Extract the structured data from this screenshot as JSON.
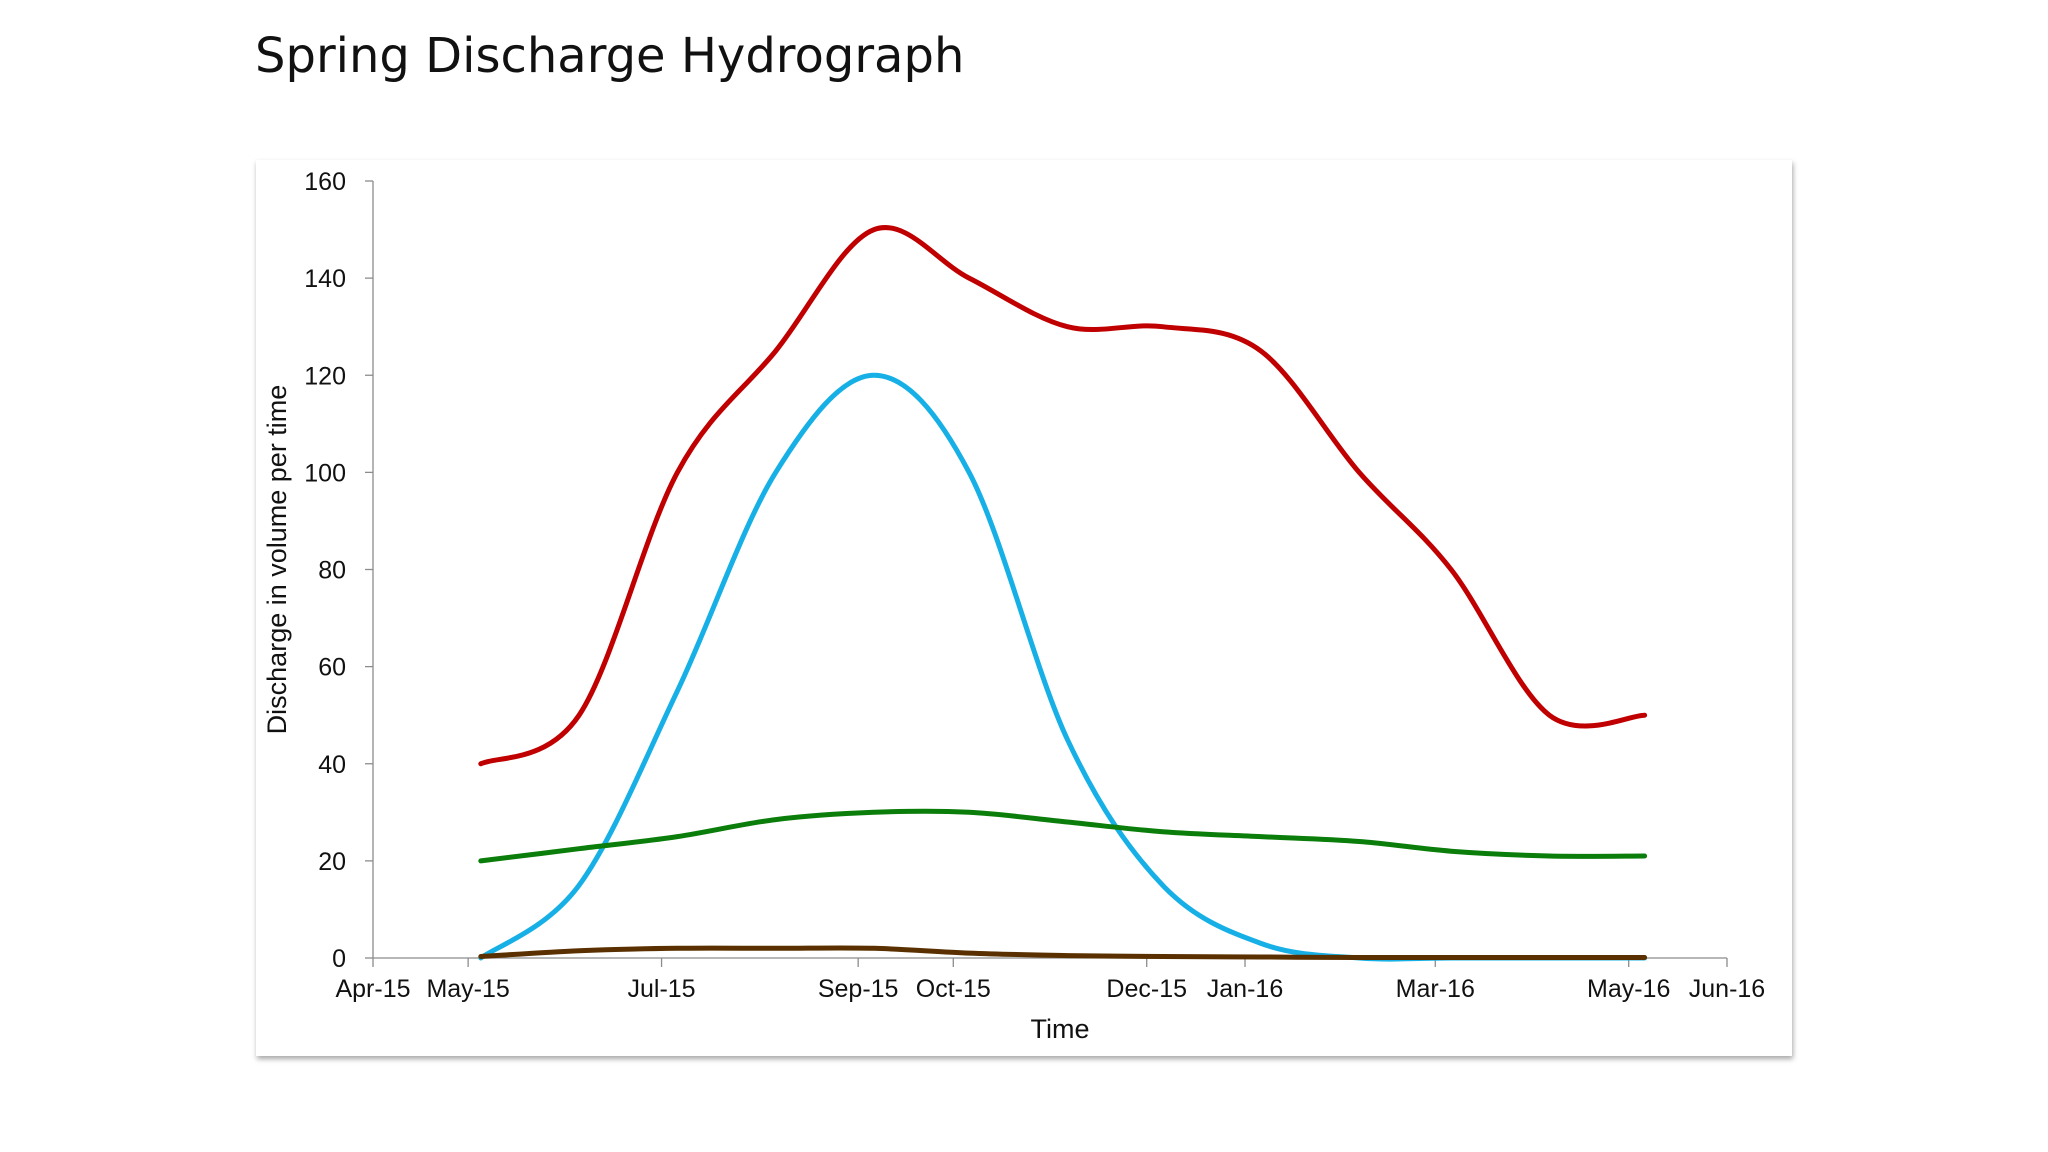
{
  "page": {
    "title": "Spring Discharge Hydrograph"
  },
  "chart_data": {
    "type": "line",
    "title": "Spring Discharge Hydrograph",
    "xlabel": "Time",
    "ylabel": "Discharge in volume per time",
    "ylim": [
      0,
      160
    ],
    "yticks": [
      0,
      20,
      40,
      60,
      80,
      100,
      120,
      140,
      160
    ],
    "xlim": [
      "2015-04-01",
      "2016-06-01"
    ],
    "xticks": [
      {
        "date": "2015-04-01",
        "label": "Apr-15"
      },
      {
        "date": "2015-05-01",
        "label": "May-15"
      },
      {
        "date": "2015-07-01",
        "label": "Jul-15"
      },
      {
        "date": "2015-09-01",
        "label": "Sep-15"
      },
      {
        "date": "2015-10-01",
        "label": "Oct-15"
      },
      {
        "date": "2015-12-01",
        "label": "Dec-15"
      },
      {
        "date": "2016-01-01",
        "label": "Jan-16"
      },
      {
        "date": "2016-03-01",
        "label": "Mar-16"
      },
      {
        "date": "2016-05-01",
        "label": "May-16"
      },
      {
        "date": "2016-06-01",
        "label": "Jun-16"
      }
    ],
    "grid": false,
    "legend": "none",
    "x": [
      "2015-05-05",
      "2015-06-05",
      "2015-07-06",
      "2015-08-06",
      "2015-09-06",
      "2015-10-06",
      "2015-11-06",
      "2015-12-06",
      "2016-01-06",
      "2016-02-06",
      "2016-03-06",
      "2016-04-06",
      "2016-05-06"
    ],
    "series": [
      {
        "color": "#c00000",
        "values": [
          40,
          50,
          100,
          125,
          150,
          140,
          130,
          130,
          125,
          100,
          80,
          50,
          50
        ],
        "values_note": null
      },
      {
        "color": "#17b0e6",
        "values": [
          0,
          15,
          55,
          100,
          120,
          100,
          45,
          15,
          3,
          0,
          0,
          0,
          0
        ]
      },
      {
        "color": "#0a7d0a",
        "values": [
          20,
          22.5,
          25,
          28.5,
          30,
          30,
          28,
          26,
          25,
          24,
          22,
          21,
          21
        ]
      },
      {
        "color": "#5a3000",
        "values": [
          0.3,
          1.5,
          2,
          2,
          2,
          1,
          0.5,
          0.3,
          0.2,
          0.1,
          0.1,
          0.1,
          0.1
        ]
      }
    ]
  }
}
